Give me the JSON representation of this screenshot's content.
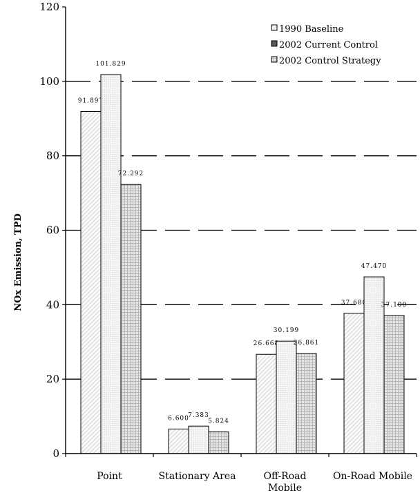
{
  "chart_data": {
    "type": "bar",
    "title": "",
    "xlabel": "",
    "ylabel": "NOx Emission, TPD",
    "ylim": [
      0,
      120
    ],
    "yticks": [
      0,
      20,
      40,
      60,
      80,
      100,
      120
    ],
    "ytick_labels": [
      "0",
      "20",
      "40",
      "60",
      "80",
      "100",
      "120"
    ],
    "grid": "dashed horizontal",
    "legend_position": "top-right",
    "categories": [
      "Point",
      "Stationary Area",
      "Off-Road Mobile",
      "On-Road Mobile"
    ],
    "category_labels": [
      [
        "Point"
      ],
      [
        "Stationary Area"
      ],
      [
        "Off-Road",
        "Mobile"
      ],
      [
        "On-Road Mobile"
      ]
    ],
    "series": [
      {
        "name": "1990 Baseline",
        "pattern": "diagonal-hatch",
        "values": [
          91.897,
          6.6,
          26.668,
          37.68
        ],
        "labels": [
          "91.897",
          "6.600",
          "26.668",
          "37.680"
        ]
      },
      {
        "name": "2002 Current Control",
        "pattern": "fine-dots",
        "values": [
          101.829,
          7.383,
          30.199,
          47.47
        ],
        "labels": [
          "101.829",
          "7.383",
          "30.199",
          "47.470"
        ]
      },
      {
        "name": "2002 Control Strategy",
        "pattern": "grid",
        "values": [
          72.292,
          5.824,
          26.861,
          37.1
        ],
        "labels": [
          "72.292",
          "5.824",
          "26.861",
          "37.100"
        ]
      }
    ]
  }
}
